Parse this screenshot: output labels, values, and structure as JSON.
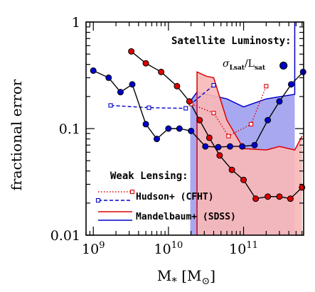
{
  "chart_data": {
    "type": "line",
    "xlabel_main": "M",
    "xlabel_sub": "*",
    "xlabel_unit_open": " [M",
    "xlabel_unit_sub": "⊙",
    "xlabel_unit_close": "]",
    "ylabel": "fractional error",
    "x_scale": "log",
    "y_scale": "log",
    "xlim": [
      800000000.0,
      630000000000.0
    ],
    "ylim": [
      0.01,
      1
    ],
    "x_ticks": [
      {
        "value": 1000000000.0,
        "base": "10",
        "exp": "9"
      },
      {
        "value": 10000000000.0,
        "base": "10",
        "exp": "10"
      },
      {
        "value": 100000000000.0,
        "base": "10",
        "exp": "11"
      }
    ],
    "y_ticks": [
      {
        "value": 1,
        "label": "1"
      },
      {
        "value": 0.1,
        "label": "0.1"
      },
      {
        "value": 0.01,
        "label": "0.01"
      }
    ],
    "shaded_regions": [
      {
        "name": "Mandelbaum+ (SDSS)",
        "color": "#0000cc",
        "fill": "#a8a8f0",
        "upper_x": [
          19500000000.0,
          24000000000.0,
          60000000000.0,
          100000000000.0,
          200000000000.0,
          480000000000.0,
          480000000000.0
        ],
        "upper_y": [
          0.18,
          0.22,
          0.19,
          0.16,
          0.19,
          0.21,
          1.0
        ],
        "lower_x": [
          19500000000.0,
          24000000000.0,
          50000000000.0,
          100000000000.0,
          200000000000.0,
          300000000000.0,
          480000000000.0
        ],
        "lower_y": [
          0.01,
          0.01,
          0.01,
          0.01,
          0.01,
          0.01,
          0.01
        ]
      },
      {
        "name": "Mandelbaum+ (SDSS)",
        "color": "#dd0000",
        "fill": "#f9b8b8",
        "upper_x": [
          24000000000.0,
          24000000000.0,
          32000000000.0,
          40000000000.0,
          60000000000.0,
          100000000000.0,
          200000000000.0,
          300000000000.0,
          480000000000.0,
          600000000000.0
        ],
        "upper_y": [
          0.01,
          0.34,
          0.31,
          0.3,
          0.12,
          0.065,
          0.063,
          0.068,
          0.063,
          0.085
        ],
        "lower_y": 0.01
      }
    ],
    "series": [
      {
        "name": "Hudson+ (CFHT)",
        "style": "dotted",
        "color": "#dd0000",
        "marker": "open-square",
        "x": [
          20000000000.0,
          40000000000.0,
          63000000000.0,
          126000000000.0,
          200000000000.0
        ],
        "y": [
          0.17,
          0.14,
          0.085,
          0.11,
          0.25
        ]
      },
      {
        "name": "Hudson+ (CFHT)",
        "style": "dashed",
        "color": "#0000cc",
        "marker": "open-square",
        "x": [
          1700000000.0,
          5500000000.0,
          17000000000.0,
          40000000000.0
        ],
        "y": [
          0.165,
          0.157,
          0.155,
          0.255
        ]
      },
      {
        "style": "solid",
        "color": "#000000",
        "marker": "filled-circle",
        "marker_color": "#dd0000",
        "x": [
          3200000000.0,
          5000000000.0,
          8000000000.0,
          13000000000.0,
          19000000000.0,
          26000000000.0,
          35000000000.0,
          48000000000.0,
          70000000000.0,
          100000000000.0,
          145000000000.0,
          210000000000.0,
          300000000000.0,
          420000000000.0,
          600000000000.0
        ],
        "y": [
          0.53,
          0.41,
          0.34,
          0.25,
          0.18,
          0.12,
          0.082,
          0.056,
          0.041,
          0.033,
          0.022,
          0.023,
          0.023,
          0.022,
          0.028
        ]
      },
      {
        "style": "solid",
        "color": "#000000",
        "marker": "filled-circle",
        "marker_color": "#0000cc",
        "x": [
          1000000000.0,
          1600000000.0,
          2300000000.0,
          3300000000.0,
          5000000000.0,
          7000000000.0,
          10000000000.0,
          14000000000.0,
          20000000000.0,
          31000000000.0,
          46000000000.0,
          66000000000.0,
          96000000000.0,
          140000000000.0,
          210000000000.0,
          300000000000.0,
          430000000000.0,
          620000000000.0
        ],
        "y": [
          0.35,
          0.3,
          0.22,
          0.26,
          0.11,
          0.08,
          0.1,
          0.1,
          0.095,
          0.068,
          0.067,
          0.068,
          0.068,
          0.07,
          0.12,
          0.18,
          0.26,
          0.34
        ]
      }
    ],
    "annotation_point": {
      "x": 340000000000.0,
      "y": 0.39,
      "color": "#0000cc"
    },
    "satellite_title": "Satellite Luminosty:",
    "sigma_label": "σ",
    "sigma_sub": "Lsat",
    "slash_L": "/L",
    "sat_sub": "sat",
    "weak_lensing_label": "Weak Lensing:",
    "legend": [
      {
        "label": "Hudson+ (CFHT)",
        "top_color": "#dd0000",
        "top_style": "dotted",
        "bottom_color": "#0000cc",
        "bottom_style": "dashed",
        "marker": "open-square"
      },
      {
        "label": "Mandelbaum+ (SDSS)",
        "top_color": "#dd0000",
        "top_style": "solid",
        "bottom_color": "#0000cc",
        "bottom_style": "solid",
        "marker": "none"
      }
    ]
  }
}
